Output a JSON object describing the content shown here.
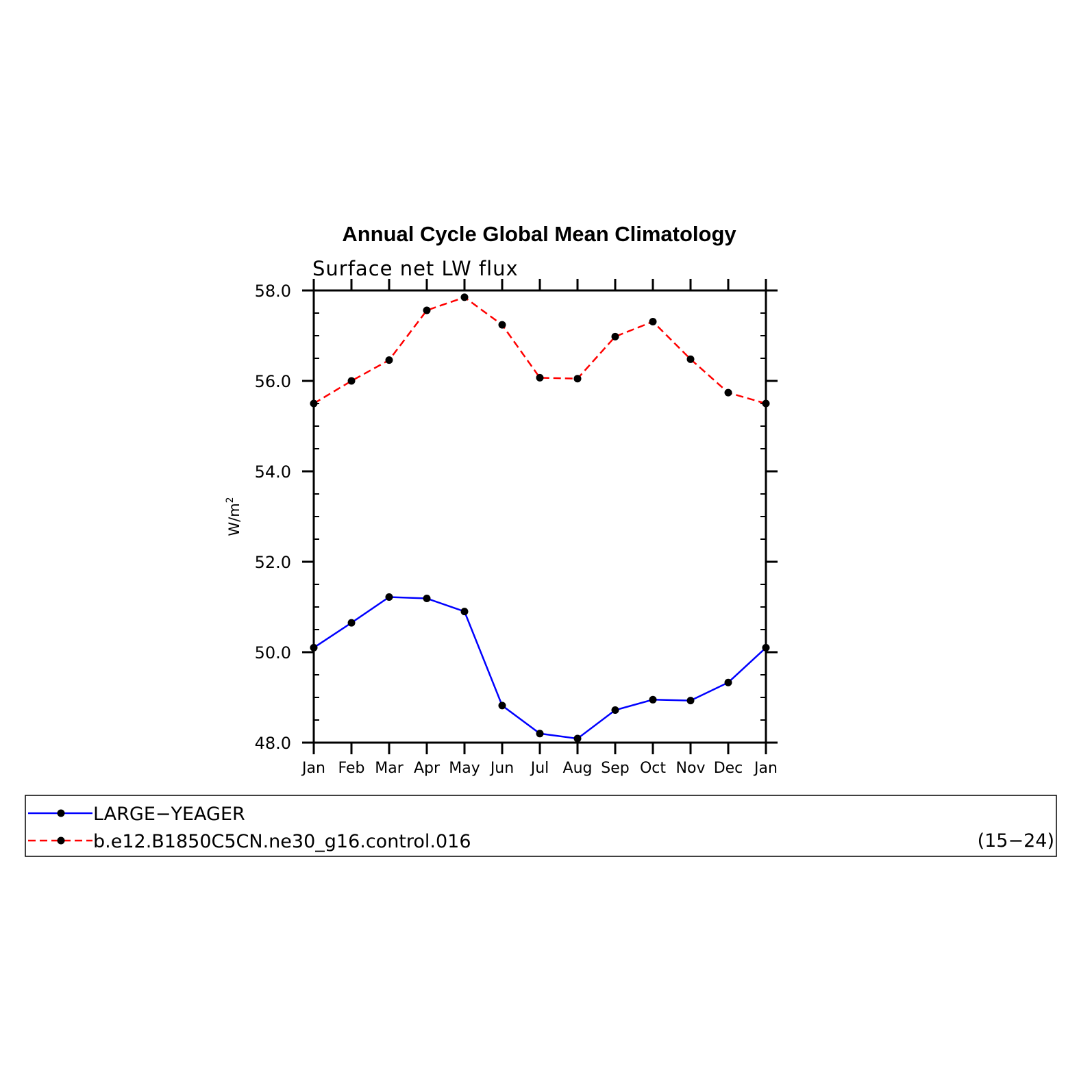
{
  "chart_data": {
    "type": "line",
    "title": "Annual Cycle Global Mean Climatology",
    "subtitle": "Surface net LW flux",
    "ylabel": "W/m",
    "ylabel_superscript": "2",
    "xlabel": "",
    "categories": [
      "Jan",
      "Feb",
      "Mar",
      "Apr",
      "May",
      "Jun",
      "Jul",
      "Aug",
      "Sep",
      "Oct",
      "Nov",
      "Dec",
      "Jan"
    ],
    "ylim": [
      48.0,
      58.0
    ],
    "yticks": [
      "48.0",
      "50.0",
      "52.0",
      "54.0",
      "56.0",
      "58.0"
    ],
    "grid": false,
    "legend_placement": "bottom",
    "legend_note": "(15−24)",
    "series": [
      {
        "name": "LARGE−YEAGER",
        "color": "#0000ff",
        "style": "solid",
        "values": [
          50.1,
          50.65,
          51.22,
          51.19,
          50.9,
          48.82,
          48.2,
          48.09,
          48.72,
          48.95,
          48.93,
          49.33,
          50.1
        ]
      },
      {
        "name": "b.e12.B1850C5CN.ne30_g16.control.016",
        "color": "#ff0000",
        "style": "dashed",
        "values": [
          55.5,
          56.0,
          56.46,
          57.56,
          57.85,
          57.24,
          56.07,
          56.05,
          56.98,
          57.31,
          56.48,
          55.74,
          55.5
        ]
      }
    ]
  }
}
